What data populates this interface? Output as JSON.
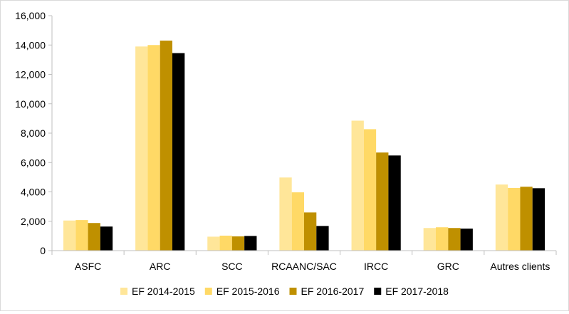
{
  "chart_data": {
    "type": "bar",
    "categories": [
      "ASFC",
      "ARC",
      "SCC",
      "RCAANC/SAC",
      "IRCC",
      "GRC",
      "Autres clients"
    ],
    "series": [
      {
        "name": "EF 2014-2015",
        "color": "#ffe699",
        "values": [
          2050,
          13900,
          950,
          4980,
          8850,
          1540,
          4500
        ]
      },
      {
        "name": "EF 2015-2016",
        "color": "#ffd966",
        "values": [
          2080,
          14000,
          1020,
          3970,
          8270,
          1590,
          4270
        ]
      },
      {
        "name": "EF 2016-2017",
        "color": "#bf9000",
        "values": [
          1880,
          14300,
          970,
          2600,
          6680,
          1540,
          4350
        ]
      },
      {
        "name": "EF 2017-2018",
        "color": "#000000",
        "values": [
          1640,
          13450,
          1000,
          1680,
          6480,
          1500,
          4250
        ]
      }
    ],
    "y_ticks": [
      "0",
      "2,000",
      "4,000",
      "6,000",
      "8,000",
      "10,000",
      "12,000",
      "14,000",
      "16,000"
    ],
    "ylim": [
      0,
      16000
    ],
    "grid": false,
    "legend_position": "bottom",
    "axis_color": "#bfbfbf"
  }
}
